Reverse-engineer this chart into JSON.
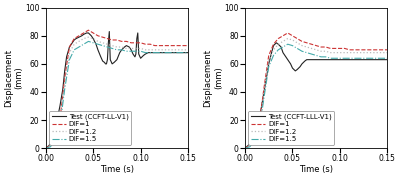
{
  "fig_width": 4.0,
  "fig_height": 1.78,
  "dpi": 100,
  "plots": [
    {
      "xlabel": "Time (s)",
      "ylabel": "Displacement\n(mm)",
      "xlim": [
        0.0,
        0.15
      ],
      "ylim": [
        0,
        100
      ],
      "yticks": [
        0,
        20,
        40,
        60,
        80,
        100
      ],
      "xticks": [
        0.0,
        0.05,
        0.1,
        0.15
      ],
      "series": [
        {
          "label": "Test (CCFT-LL-V1)",
          "color": "#222222",
          "linestyle": "solid",
          "linewidth": 0.8,
          "x": [
            0.0,
            0.002,
            0.005,
            0.008,
            0.01,
            0.012,
            0.015,
            0.018,
            0.02,
            0.022,
            0.025,
            0.028,
            0.03,
            0.032,
            0.035,
            0.038,
            0.04,
            0.043,
            0.045,
            0.048,
            0.05,
            0.053,
            0.055,
            0.058,
            0.06,
            0.062,
            0.063,
            0.064,
            0.065,
            0.066,
            0.067,
            0.068,
            0.07,
            0.072,
            0.075,
            0.078,
            0.08,
            0.083,
            0.085,
            0.088,
            0.09,
            0.092,
            0.093,
            0.094,
            0.095,
            0.096,
            0.097,
            0.098,
            0.1,
            0.103,
            0.105,
            0.108,
            0.11,
            0.113,
            0.115,
            0.118,
            0.12,
            0.123,
            0.125,
            0.128,
            0.13,
            0.133,
            0.135,
            0.138,
            0.14,
            0.143,
            0.145,
            0.148,
            0.15
          ],
          "y": [
            0,
            1,
            3,
            8,
            14,
            20,
            30,
            42,
            55,
            65,
            72,
            75,
            77,
            78,
            79,
            80,
            81,
            82,
            82,
            80,
            78,
            74,
            70,
            65,
            62,
            61,
            60,
            60,
            63,
            75,
            83,
            63,
            60,
            61,
            63,
            68,
            70,
            72,
            73,
            72,
            70,
            67,
            66,
            65,
            67,
            78,
            82,
            67,
            64,
            66,
            67,
            68,
            68,
            68,
            68,
            68,
            68,
            68,
            68,
            68,
            68,
            68,
            68,
            68,
            68,
            68,
            68,
            68,
            68
          ]
        },
        {
          "label": "DIF=1",
          "color": "#cc3333",
          "linestyle": "dashed",
          "linewidth": 0.8,
          "x": [
            0.0,
            0.005,
            0.01,
            0.015,
            0.02,
            0.025,
            0.03,
            0.035,
            0.04,
            0.045,
            0.05,
            0.055,
            0.06,
            0.065,
            0.07,
            0.075,
            0.08,
            0.085,
            0.09,
            0.095,
            0.1,
            0.105,
            0.11,
            0.115,
            0.12,
            0.125,
            0.13,
            0.135,
            0.14,
            0.145,
            0.15
          ],
          "y": [
            0,
            2,
            8,
            20,
            50,
            72,
            78,
            80,
            82,
            84,
            82,
            80,
            79,
            78,
            77,
            77,
            76,
            76,
            75,
            75,
            75,
            74,
            74,
            73,
            73,
            73,
            73,
            73,
            73,
            73,
            73
          ]
        },
        {
          "label": "DIF=1.2",
          "color": "#bbbbbb",
          "linestyle": "dotted",
          "linewidth": 0.9,
          "x": [
            0.0,
            0.005,
            0.01,
            0.015,
            0.02,
            0.025,
            0.03,
            0.035,
            0.04,
            0.045,
            0.05,
            0.055,
            0.06,
            0.065,
            0.07,
            0.075,
            0.08,
            0.085,
            0.09,
            0.095,
            0.1,
            0.105,
            0.11,
            0.115,
            0.12,
            0.125,
            0.13,
            0.135,
            0.14,
            0.145,
            0.15
          ],
          "y": [
            0,
            2,
            7,
            18,
            46,
            68,
            74,
            76,
            78,
            79,
            78,
            76,
            75,
            74,
            73,
            72,
            72,
            71,
            71,
            71,
            71,
            70,
            70,
            70,
            70,
            70,
            70,
            70,
            70,
            70,
            70
          ]
        },
        {
          "label": "DIF=1.5",
          "color": "#44aaaa",
          "linestyle": "dashdot",
          "linewidth": 0.8,
          "x": [
            0.0,
            0.005,
            0.01,
            0.015,
            0.02,
            0.025,
            0.03,
            0.035,
            0.04,
            0.045,
            0.05,
            0.055,
            0.06,
            0.065,
            0.07,
            0.075,
            0.08,
            0.085,
            0.09,
            0.095,
            0.1,
            0.105,
            0.11,
            0.115,
            0.12,
            0.125,
            0.13,
            0.135,
            0.14,
            0.145,
            0.15
          ],
          "y": [
            0,
            1,
            6,
            16,
            42,
            63,
            70,
            72,
            74,
            76,
            75,
            74,
            73,
            72,
            71,
            70,
            70,
            69,
            69,
            69,
            69,
            68,
            68,
            68,
            68,
            68,
            68,
            68,
            68,
            68,
            68
          ]
        }
      ]
    },
    {
      "xlabel": "Time (s)",
      "ylabel": "Displacement\n(mm)",
      "xlim": [
        0.0,
        0.15
      ],
      "ylim": [
        0,
        100
      ],
      "yticks": [
        0,
        20,
        40,
        60,
        80,
        100
      ],
      "xticks": [
        0.0,
        0.05,
        0.1,
        0.15
      ],
      "series": [
        {
          "label": "Test (CCFT-LLL-V1)",
          "color": "#222222",
          "linestyle": "solid",
          "linewidth": 0.8,
          "x": [
            0.0,
            0.005,
            0.01,
            0.015,
            0.02,
            0.025,
            0.028,
            0.03,
            0.033,
            0.035,
            0.038,
            0.04,
            0.043,
            0.045,
            0.048,
            0.05,
            0.053,
            0.055,
            0.058,
            0.06,
            0.063,
            0.065,
            0.068,
            0.07,
            0.075,
            0.08,
            0.085,
            0.09,
            0.095,
            0.1,
            0.105,
            0.11,
            0.115,
            0.12,
            0.125,
            0.13,
            0.135,
            0.14,
            0.145,
            0.15
          ],
          "y": [
            0,
            3,
            10,
            20,
            40,
            60,
            68,
            73,
            75,
            74,
            72,
            68,
            65,
            63,
            60,
            57,
            55,
            56,
            58,
            60,
            62,
            63,
            63,
            63,
            63,
            63,
            63,
            63,
            63,
            63,
            63,
            63,
            63,
            63,
            63,
            63,
            63,
            63,
            63,
            63
          ]
        },
        {
          "label": "DIF=1",
          "color": "#cc3333",
          "linestyle": "dashed",
          "linewidth": 0.8,
          "x": [
            0.0,
            0.005,
            0.01,
            0.015,
            0.02,
            0.025,
            0.03,
            0.035,
            0.04,
            0.045,
            0.05,
            0.055,
            0.06,
            0.065,
            0.07,
            0.075,
            0.08,
            0.085,
            0.09,
            0.095,
            0.1,
            0.105,
            0.11,
            0.115,
            0.12,
            0.125,
            0.13,
            0.135,
            0.14,
            0.145,
            0.15
          ],
          "y": [
            0,
            2,
            7,
            17,
            43,
            66,
            74,
            78,
            80,
            82,
            80,
            78,
            76,
            75,
            74,
            73,
            72,
            72,
            71,
            71,
            71,
            71,
            70,
            70,
            70,
            70,
            70,
            70,
            70,
            70,
            70
          ]
        },
        {
          "label": "DIF=1.2",
          "color": "#bbbbbb",
          "linestyle": "dotted",
          "linewidth": 0.9,
          "x": [
            0.0,
            0.005,
            0.01,
            0.015,
            0.02,
            0.025,
            0.03,
            0.035,
            0.04,
            0.045,
            0.05,
            0.055,
            0.06,
            0.065,
            0.07,
            0.075,
            0.08,
            0.085,
            0.09,
            0.095,
            0.1,
            0.105,
            0.11,
            0.115,
            0.12,
            0.125,
            0.13,
            0.135,
            0.14,
            0.145,
            0.15
          ],
          "y": [
            0,
            2,
            6,
            15,
            40,
            62,
            70,
            74,
            76,
            78,
            77,
            75,
            73,
            72,
            71,
            70,
            69,
            69,
            68,
            68,
            68,
            68,
            68,
            68,
            68,
            68,
            68,
            68,
            68,
            68,
            68
          ]
        },
        {
          "label": "DIF=1.5",
          "color": "#44aaaa",
          "linestyle": "dashdot",
          "linewidth": 0.8,
          "x": [
            0.0,
            0.005,
            0.01,
            0.015,
            0.02,
            0.025,
            0.03,
            0.035,
            0.04,
            0.045,
            0.05,
            0.055,
            0.06,
            0.065,
            0.07,
            0.075,
            0.08,
            0.085,
            0.09,
            0.095,
            0.1,
            0.105,
            0.11,
            0.115,
            0.12,
            0.125,
            0.13,
            0.135,
            0.14,
            0.145,
            0.15
          ],
          "y": [
            0,
            1,
            5,
            13,
            36,
            58,
            66,
            70,
            72,
            74,
            73,
            71,
            69,
            68,
            67,
            66,
            65,
            65,
            64,
            64,
            64,
            64,
            64,
            64,
            64,
            64,
            64,
            64,
            64,
            64,
            64
          ]
        }
      ]
    }
  ],
  "legend_fontsize": 5.0,
  "axis_fontsize": 6.0,
  "tick_fontsize": 5.5,
  "background_color": "#ffffff"
}
